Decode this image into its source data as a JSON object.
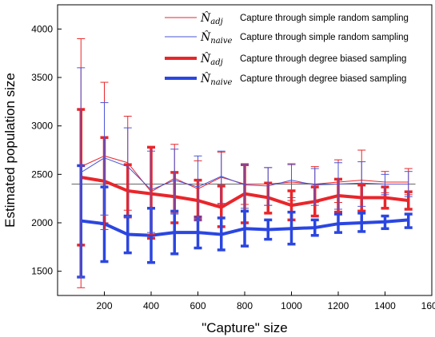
{
  "chart_data": {
    "type": "line",
    "title": "",
    "xlabel": "\"Capture\" size",
    "ylabel": "Estimated population size",
    "xlim": [
      0,
      1600
    ],
    "ylim": [
      1250,
      4250
    ],
    "xticks": [
      200,
      400,
      600,
      800,
      1000,
      1200,
      1400,
      1600
    ],
    "yticks": [
      1500,
      2000,
      2500,
      3000,
      3500,
      4000
    ],
    "reference_line": 2400,
    "legend_position": "top-right",
    "x": [
      100,
      200,
      300,
      400,
      500,
      600,
      700,
      800,
      900,
      1000,
      1100,
      1200,
      1300,
      1400,
      1500
    ],
    "series": [
      {
        "name": "Capture through simple random sampling",
        "symbol": "N̂",
        "subscript": "adj",
        "color": "#e8262b",
        "style": "thin",
        "values": [
          2580,
          2690,
          2620,
          2320,
          2460,
          2350,
          2470,
          2400,
          2400,
          2420,
          2400,
          2420,
          2440,
          2420,
          2420
        ],
        "err_low": [
          1330,
          1930,
          2130,
          1880,
          2100,
          2060,
          2190,
          2190,
          2180,
          2230,
          2210,
          2210,
          2130,
          2310,
          2290
        ],
        "err_high": [
          3900,
          3450,
          3100,
          2780,
          2810,
          2640,
          2730,
          2600,
          2570,
          2610,
          2580,
          2650,
          2750,
          2530,
          2560
        ]
      },
      {
        "name": "Capture through simple random sampling",
        "symbol": "N̂",
        "subscript": "naive",
        "color": "#4a56d6",
        "style": "thin",
        "values": [
          2520,
          2670,
          2580,
          2340,
          2440,
          2370,
          2480,
          2390,
          2380,
          2440,
          2390,
          2400,
          2410,
          2400,
          2400
        ],
        "err_low": [
          1440,
          2080,
          2060,
          1900,
          2090,
          2020,
          2200,
          2150,
          2180,
          2260,
          2180,
          2140,
          2170,
          2290,
          2270
        ],
        "err_high": [
          3600,
          3240,
          2980,
          2740,
          2760,
          2690,
          2740,
          2600,
          2570,
          2600,
          2560,
          2620,
          2630,
          2500,
          2530
        ]
      },
      {
        "name": "Capture through degree biased sampling",
        "symbol": "N̂",
        "subscript": "adj",
        "color": "#e8262b",
        "style": "thick",
        "values": [
          2470,
          2430,
          2330,
          2300,
          2270,
          2230,
          2160,
          2300,
          2260,
          2180,
          2220,
          2280,
          2260,
          2260,
          2230
        ],
        "err_low": [
          1770,
          1990,
          2060,
          1840,
          2000,
          2030,
          1960,
          2000,
          2100,
          2030,
          2070,
          2110,
          2120,
          2150,
          2140
        ],
        "err_high": [
          3170,
          2880,
          2600,
          2780,
          2520,
          2440,
          2380,
          2600,
          2410,
          2330,
          2370,
          2450,
          2390,
          2370,
          2320
        ]
      },
      {
        "name": "Capture through degree biased sampling",
        "symbol": "N̂",
        "subscript": "naive",
        "color": "#2b46e0",
        "style": "thick",
        "values": [
          2020,
          1990,
          1880,
          1870,
          1900,
          1900,
          1880,
          1940,
          1930,
          1940,
          1950,
          1990,
          2000,
          2010,
          2030
        ],
        "err_low": [
          1440,
          1600,
          1690,
          1590,
          1680,
          1740,
          1720,
          1760,
          1830,
          1780,
          1870,
          1900,
          1910,
          1940,
          1950
        ],
        "err_high": [
          2590,
          2370,
          2070,
          2150,
          2120,
          2060,
          2050,
          2120,
          2030,
          2110,
          2030,
          2090,
          2100,
          2070,
          2090
        ]
      }
    ]
  }
}
